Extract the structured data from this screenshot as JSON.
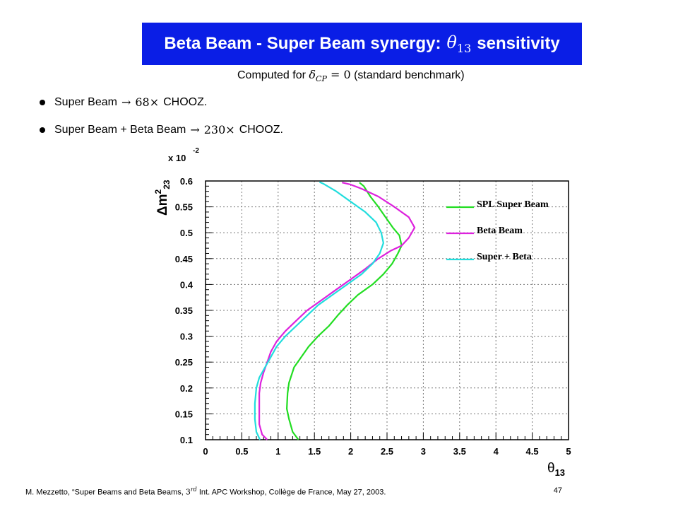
{
  "slide": {
    "title_prefix": "Beta Beam - Super Beam synergy:",
    "title_math": "θ",
    "title_math_sub": "13",
    "title_suffix": "sensitivity",
    "subtitle_prefix": "Computed for",
    "subtitle_math": "δ",
    "subtitle_math_sub": "CP",
    "subtitle_math_eq": " = 0",
    "subtitle_suffix": "(standard benchmark)",
    "bullets": [
      {
        "label": "Super Beam",
        "arrow": "→",
        "factor": "68×",
        "ref": "CHOOZ."
      },
      {
        "label": "Super Beam + Beta Beam",
        "arrow": "→",
        "factor": "230×",
        "ref": "CHOOZ."
      }
    ],
    "footer_prefix": "M. Mezzetto, “Super Beams and Beta Beams,",
    "footer_sup_base": "3",
    "footer_sup": "rd",
    "footer_suffix": "Int. APC Workshop, Collège de France, May 27, 2003.",
    "page_number": "47"
  },
  "chart_data": {
    "type": "line",
    "xlabel_symbol": "θ",
    "xlabel_sub": "13",
    "ylabel_main": "Δm",
    "ylabel_sup": "2",
    "ylabel_sub": "23",
    "y_multiplier": "x 10",
    "y_multiplier_exp": "-2",
    "xlim": [
      0,
      5
    ],
    "ylim": [
      0.1,
      0.6
    ],
    "x_ticks": [
      "0",
      "0.5",
      "1",
      "1.5",
      "2",
      "2.5",
      "3",
      "3.5",
      "4",
      "4.5",
      "5"
    ],
    "y_ticks": [
      "0.1",
      "0.15",
      "0.2",
      "0.25",
      "0.3",
      "0.35",
      "0.4",
      "0.45",
      "0.5",
      "0.55",
      "0.6"
    ],
    "grid": true,
    "legend_position": "top-right",
    "series": [
      {
        "name": "SPL Super Beam",
        "color": "#22dd22",
        "points": [
          [
            1.28,
            0.1
          ],
          [
            1.2,
            0.115
          ],
          [
            1.15,
            0.14
          ],
          [
            1.12,
            0.16
          ],
          [
            1.13,
            0.19
          ],
          [
            1.15,
            0.21
          ],
          [
            1.22,
            0.24
          ],
          [
            1.32,
            0.26
          ],
          [
            1.42,
            0.28
          ],
          [
            1.55,
            0.3
          ],
          [
            1.7,
            0.32
          ],
          [
            1.82,
            0.34
          ],
          [
            1.95,
            0.36
          ],
          [
            2.1,
            0.38
          ],
          [
            2.3,
            0.4
          ],
          [
            2.45,
            0.42
          ],
          [
            2.57,
            0.44
          ],
          [
            2.65,
            0.46
          ],
          [
            2.7,
            0.475
          ],
          [
            2.67,
            0.495
          ],
          [
            2.58,
            0.51
          ],
          [
            2.48,
            0.53
          ],
          [
            2.38,
            0.55
          ],
          [
            2.27,
            0.57
          ],
          [
            2.18,
            0.59
          ],
          [
            2.12,
            0.597
          ]
        ]
      },
      {
        "name": "Beta Beam",
        "color": "#dd22dd",
        "points": [
          [
            0.85,
            0.1
          ],
          [
            0.78,
            0.11
          ],
          [
            0.74,
            0.13
          ],
          [
            0.74,
            0.16
          ],
          [
            0.74,
            0.19
          ],
          [
            0.76,
            0.21
          ],
          [
            0.8,
            0.23
          ],
          [
            0.85,
            0.25
          ],
          [
            0.9,
            0.27
          ],
          [
            0.98,
            0.29
          ],
          [
            1.1,
            0.31
          ],
          [
            1.25,
            0.33
          ],
          [
            1.4,
            0.35
          ],
          [
            1.6,
            0.37
          ],
          [
            1.8,
            0.39
          ],
          [
            2.0,
            0.41
          ],
          [
            2.2,
            0.43
          ],
          [
            2.38,
            0.45
          ],
          [
            2.55,
            0.465
          ],
          [
            2.7,
            0.475
          ],
          [
            2.8,
            0.49
          ],
          [
            2.88,
            0.51
          ],
          [
            2.8,
            0.53
          ],
          [
            2.6,
            0.55
          ],
          [
            2.38,
            0.57
          ],
          [
            2.15,
            0.585
          ],
          [
            2.0,
            0.593
          ],
          [
            1.88,
            0.597
          ]
        ]
      },
      {
        "name": "Super + Beta",
        "color": "#22dddd",
        "points": [
          [
            0.75,
            0.1
          ],
          [
            0.7,
            0.115
          ],
          [
            0.68,
            0.14
          ],
          [
            0.68,
            0.17
          ],
          [
            0.7,
            0.2
          ],
          [
            0.74,
            0.22
          ],
          [
            0.82,
            0.24
          ],
          [
            0.9,
            0.26
          ],
          [
            0.98,
            0.28
          ],
          [
            1.1,
            0.3
          ],
          [
            1.25,
            0.32
          ],
          [
            1.4,
            0.34
          ],
          [
            1.55,
            0.36
          ],
          [
            1.75,
            0.38
          ],
          [
            1.95,
            0.4
          ],
          [
            2.15,
            0.42
          ],
          [
            2.3,
            0.44
          ],
          [
            2.4,
            0.46
          ],
          [
            2.45,
            0.48
          ],
          [
            2.42,
            0.5
          ],
          [
            2.35,
            0.52
          ],
          [
            2.2,
            0.54
          ],
          [
            2.0,
            0.56
          ],
          [
            1.8,
            0.58
          ],
          [
            1.62,
            0.595
          ],
          [
            1.57,
            0.598
          ]
        ]
      }
    ]
  }
}
